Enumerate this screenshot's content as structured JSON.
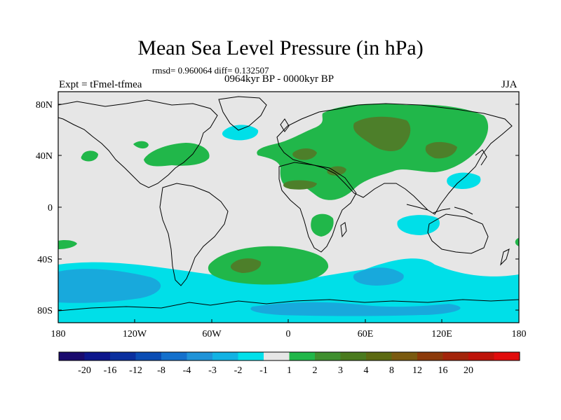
{
  "figure": {
    "title": "Mean Sea Level Pressure (in hPa)",
    "stats": "rmsd= 0.960064  diff= 0.132507",
    "period": "0964kyr BP - 0000kyr BP",
    "experiment": "Expt = tFmel-tfmea",
    "season": "JJA"
  },
  "axes": {
    "y_ticks": [
      "80N",
      "40N",
      "0",
      "40S",
      "80S"
    ],
    "x_ticks": [
      "180",
      "120W",
      "60W",
      "0",
      "60E",
      "120E",
      "180"
    ]
  },
  "legend": {
    "colors": [
      "#1a0a6e",
      "#0d168c",
      "#0a2f9e",
      "#0a4db4",
      "#1470cc",
      "#1f93d8",
      "#12b2e3",
      "#00e0ea",
      "#e6e6e6",
      "#21b74a",
      "#3f8f2f",
      "#4a7a1e",
      "#5c6a12",
      "#7a5a10",
      "#8c3a0a",
      "#a3240a",
      "#bd1309",
      "#e10c0c"
    ],
    "labels": [
      "-20",
      "-16",
      "-12",
      "-8",
      "-4",
      "-3",
      "-2",
      "-1",
      "1",
      "2",
      "3",
      "4",
      "8",
      "12",
      "16",
      "20"
    ]
  },
  "colors": {
    "neutral": "#e6e6e6",
    "green_light": "#21b74a",
    "green_dark": "#4d7f2a",
    "cyan": "#00dfe8",
    "blue": "#18a9dc",
    "coast": "#000000"
  }
}
